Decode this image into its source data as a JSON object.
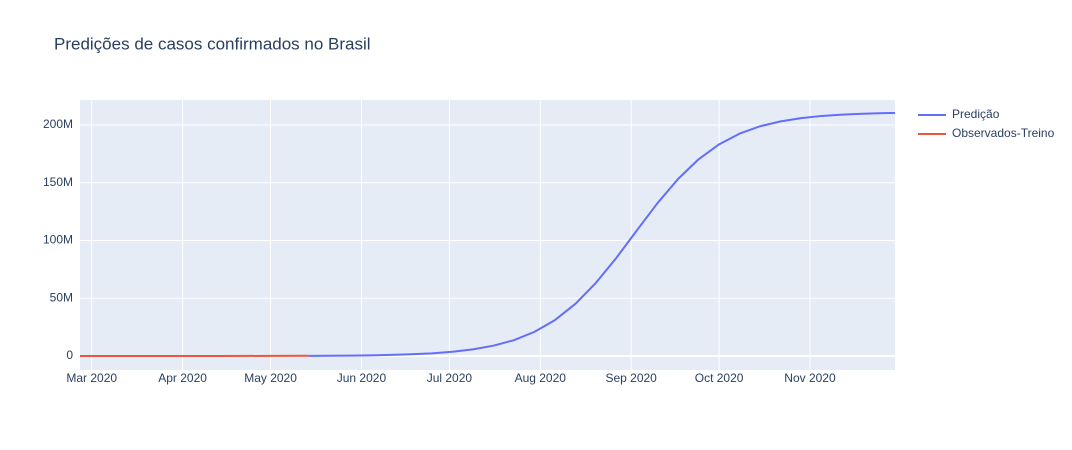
{
  "chart_data": {
    "type": "line",
    "title": "Predições de casos confirmados no Brasil",
    "xlim": [
      "2020-02-26",
      "2020-11-30"
    ],
    "xticks": [
      {
        "value": "2020-03-01",
        "label": "Mar 2020"
      },
      {
        "value": "2020-04-01",
        "label": "Apr 2020"
      },
      {
        "value": "2020-05-01",
        "label": "May 2020"
      },
      {
        "value": "2020-06-01",
        "label": "Jun 2020"
      },
      {
        "value": "2020-07-01",
        "label": "Jul 2020"
      },
      {
        "value": "2020-08-01",
        "label": "Aug 2020"
      },
      {
        "value": "2020-09-01",
        "label": "Sep 2020"
      },
      {
        "value": "2020-10-01",
        "label": "Oct 2020"
      },
      {
        "value": "2020-11-01",
        "label": "Nov 2020"
      }
    ],
    "ylim": [
      -12100000,
      221600000
    ],
    "yticks": [
      0,
      {
        "value": 50000000,
        "label": "50M"
      },
      {
        "value": 100000000,
        "label": "100M"
      },
      {
        "value": 150000000,
        "label": "150M"
      },
      {
        "value": 200000000,
        "label": "200M"
      }
    ],
    "grid": true,
    "legend": "right",
    "series": [
      {
        "name": "Predição",
        "color": "#636efa",
        "x": [
          "2020-05-14",
          "2020-05-21",
          "2020-05-28",
          "2020-06-04",
          "2020-06-11",
          "2020-06-18",
          "2020-06-25",
          "2020-07-02",
          "2020-07-09",
          "2020-07-16",
          "2020-07-23",
          "2020-07-30",
          "2020-08-06",
          "2020-08-13",
          "2020-08-20",
          "2020-08-27",
          "2020-09-03",
          "2020-09-10",
          "2020-09-17",
          "2020-09-24",
          "2020-10-01",
          "2020-10-08",
          "2020-10-15",
          "2020-10-22",
          "2020-10-29",
          "2020-11-05",
          "2020-11-12",
          "2020-11-19",
          "2020-11-26",
          "2020-11-30"
        ],
        "values": [
          157000,
          240000,
          390000,
          610000,
          950000,
          1500000,
          2340000,
          3680000,
          5750000,
          8940000,
          13700000,
          20900000,
          31100000,
          45200000,
          63400000,
          85100000,
          108900000,
          132400000,
          153200000,
          170300000,
          183200000,
          192500000,
          198900000,
          203100000,
          205900000,
          207800000,
          208900000,
          209700000,
          210200000,
          210400000
        ]
      },
      {
        "name": "Observados-Treino",
        "color": "#ef553b",
        "x": [
          "2020-02-26",
          "2020-03-15",
          "2020-04-01",
          "2020-04-15",
          "2020-05-01",
          "2020-05-14"
        ],
        "values": [
          0,
          200,
          6836,
          28320,
          91589,
          202918
        ]
      }
    ]
  }
}
